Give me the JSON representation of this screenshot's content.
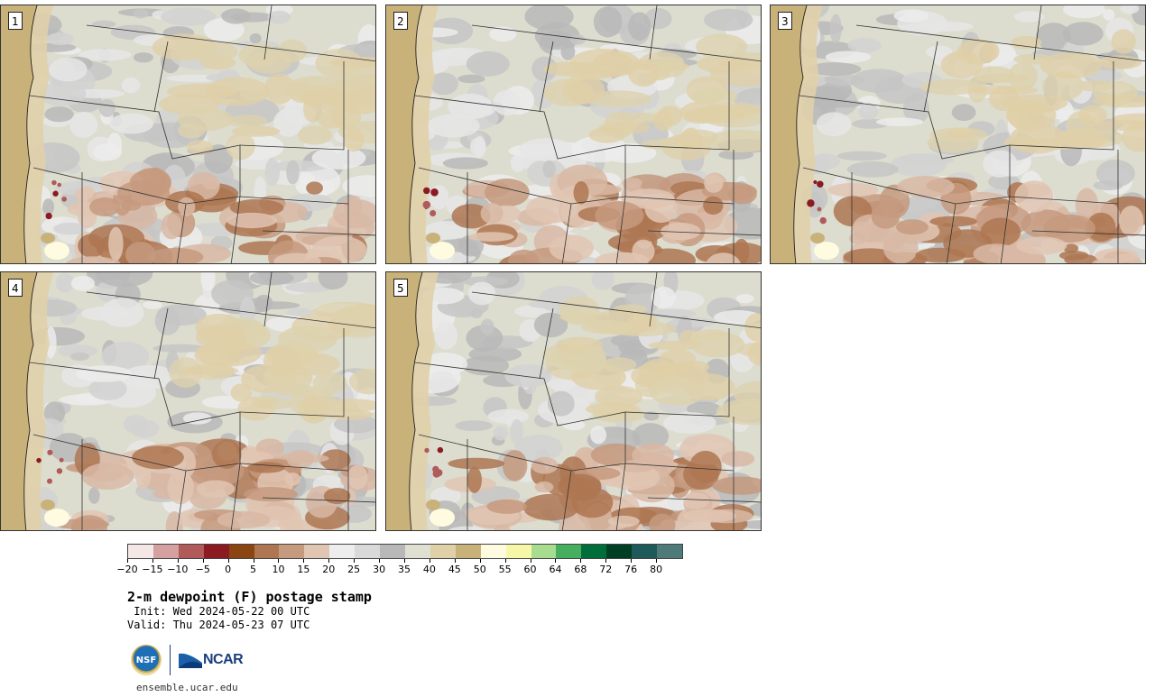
{
  "panels": [
    {
      "label": "1"
    },
    {
      "label": "2"
    },
    {
      "label": "3"
    },
    {
      "label": "4"
    },
    {
      "label": "5"
    }
  ],
  "colorbar": {
    "colors": [
      "#f3e8e6",
      "#d4a0a0",
      "#b05a5a",
      "#8b1a22",
      "#8b4513",
      "#ae7752",
      "#c69a7f",
      "#e0c5b3",
      "#ededed",
      "#d9d9d9",
      "#b8b8b8",
      "#e0e0d2",
      "#e0d0a8",
      "#c9b27a",
      "#fffbe0",
      "#f7f7a8",
      "#a8dc8f",
      "#45ae5f",
      "#006e3a",
      "#003f24",
      "#1f5a5a",
      "#4e7a7a"
    ],
    "tick_labels": [
      "−20",
      "−15",
      "−10",
      "−5",
      "0",
      "5",
      "10",
      "15",
      "20",
      "25",
      "30",
      "35",
      "40",
      "45",
      "50",
      "55",
      "60",
      "64",
      "68",
      "72",
      "76",
      "80"
    ]
  },
  "title": "2-m dewpoint (F) postage stamp",
  "init": " Init: Wed 2024-05-22 00 UTC",
  "valid": "Valid: Thu 2024-05-23 07 UTC",
  "logos": {
    "nsf": "NSF",
    "ncar": "NCAR"
  },
  "url": "ensemble.ucar.edu"
}
